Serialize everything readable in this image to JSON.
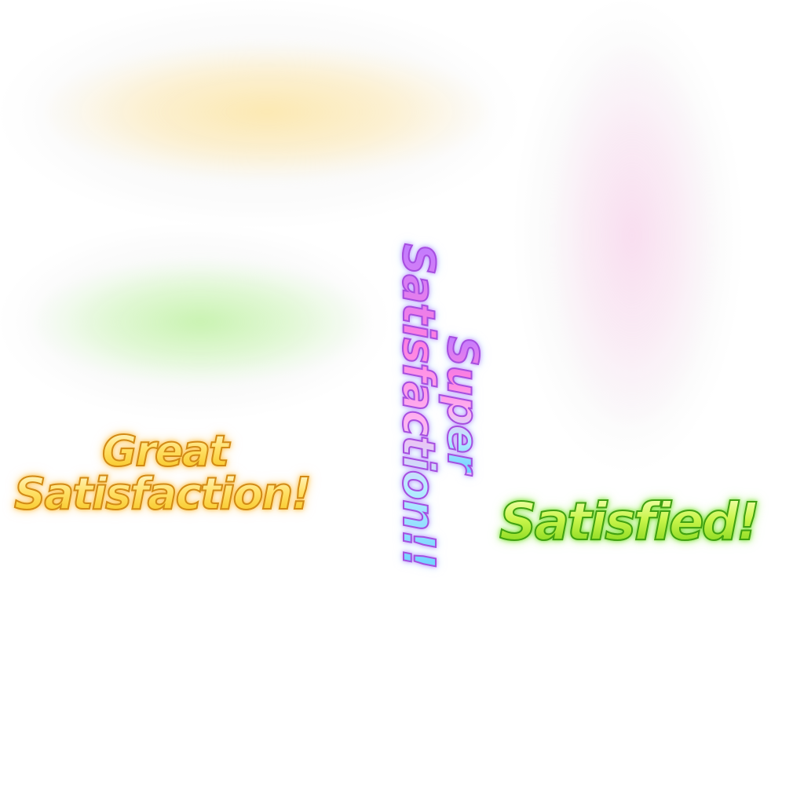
{
  "sprites": {
    "great": {
      "line1": "Great",
      "line2": "Satisfaction!",
      "fill_color": "#ffe066",
      "outline_color": "#d28a16",
      "glow_color": "#ffdc78"
    },
    "super": {
      "line1": "Super",
      "line2": "Satisfaction!!",
      "fill_colors": [
        "#c07cff",
        "#ff7fe0",
        "#b8ecff",
        "#6fd2ff"
      ],
      "outline_color": "#a64fe0"
    },
    "satisfied": {
      "text": "Satisfied!",
      "fill_color": "#c9f54a",
      "outline_color": "#3fa012",
      "glow_color": "#aaf082"
    },
    "pink_glow": {
      "glow_color": "#fabee6"
    }
  }
}
